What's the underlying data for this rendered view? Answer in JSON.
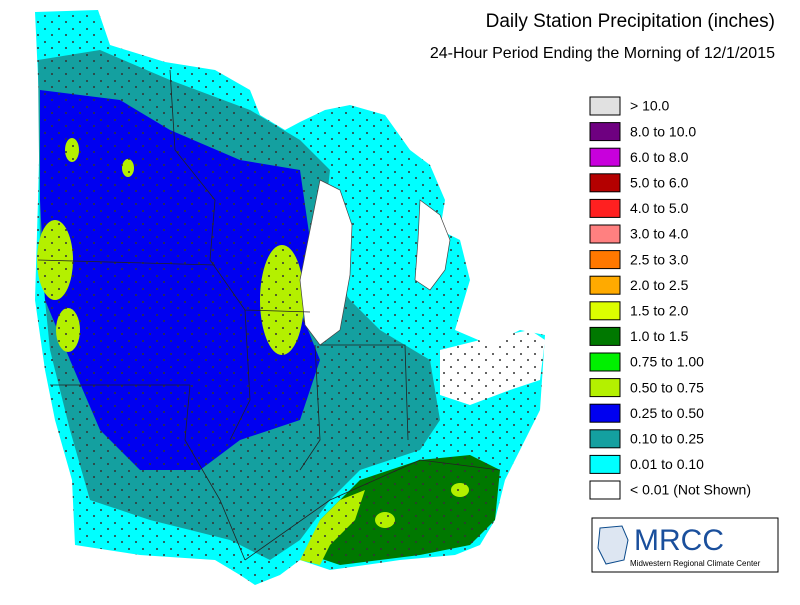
{
  "header": {
    "title": "Daily Station Precipitation (inches)",
    "subtitle": "24-Hour Period Ending the Morning of 12/1/2015"
  },
  "legend": {
    "items": [
      {
        "label": "> 10.0",
        "color": "#e1e1e1"
      },
      {
        "label": "8.0 to 10.0",
        "color": "#6e0080"
      },
      {
        "label": "6.0 to 8.0",
        "color": "#c800dc"
      },
      {
        "label": "5.0 to 6.0",
        "color": "#b40000"
      },
      {
        "label": "4.0 to 5.0",
        "color": "#ff2020"
      },
      {
        "label": "3.0 to 4.0",
        "color": "#ff8080"
      },
      {
        "label": "2.5 to 3.0",
        "color": "#ff7800"
      },
      {
        "label": "2.0 to 2.5",
        "color": "#ffaa00"
      },
      {
        "label": "1.5 to 2.0",
        "color": "#dcff00"
      },
      {
        "label": "1.0 to 1.5",
        "color": "#007800"
      },
      {
        "label": "0.75 to 1.00",
        "color": "#00f000"
      },
      {
        "label": "0.50 to 0.75",
        "color": "#b4f000"
      },
      {
        "label": "0.25 to 0.50",
        "color": "#0000f0"
      },
      {
        "label": "0.10 to 0.25",
        "color": "#14a0a0"
      },
      {
        "label": "0.01 to 0.10",
        "color": "#00ffff"
      },
      {
        "label": "< 0.01 (Not Shown)",
        "color": "#ffffff"
      }
    ]
  },
  "logo": {
    "name": "MRCC",
    "full_name": "Midwestern Regional Climate Center"
  }
}
